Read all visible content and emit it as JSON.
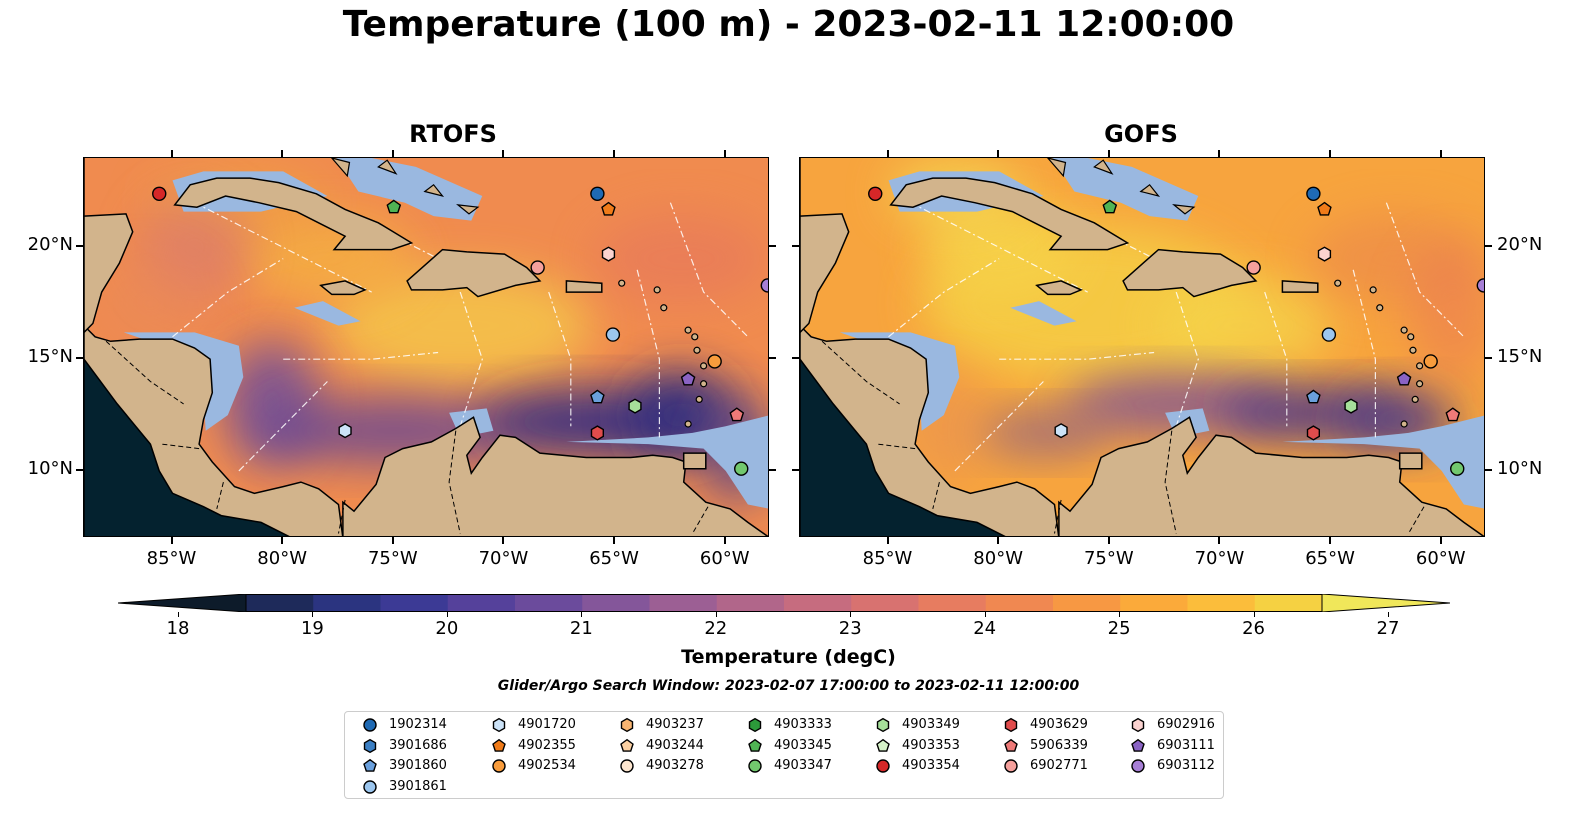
{
  "title": "Temperature (100 m) - 2023-02-11 12:00:00",
  "panels": [
    {
      "title": "RTOFS"
    },
    {
      "title": "GOFS"
    }
  ],
  "x_tick_labels": [
    "85°W",
    "80°W",
    "75°W",
    "70°W",
    "65°W",
    "60°W"
  ],
  "y_tick_labels": [
    "20°N",
    "15°N",
    "10°N"
  ],
  "colorbar": {
    "label": "Temperature (degC)",
    "ticks": [
      "18",
      "19",
      "20",
      "21",
      "22",
      "23",
      "24",
      "25",
      "26",
      "27"
    ],
    "colors": [
      "#0d1b2a",
      "#1e2a5a",
      "#2b3480",
      "#3c3a95",
      "#55419b",
      "#6b4b9c",
      "#84569a",
      "#9c5f94",
      "#b1668a",
      "#c66c7f",
      "#d87270",
      "#e77c60",
      "#f08851",
      "#f79843",
      "#fbaa3a",
      "#fbbd3b",
      "#f5d142",
      "#f0e75a"
    ],
    "vmin": 17.5,
    "vmax": 27
  },
  "search_window": "Glider/Argo Search Window: 2023-02-07 17:00:00 to 2023-02-11 12:00:00",
  "map": {
    "land_color": "#d2b48c",
    "ocean_shallow_color": "#9ab8e0",
    "pacific_color": "#04222f",
    "extent": {
      "lon": [
        -89,
        -58
      ],
      "lat": [
        7,
        24
      ]
    }
  },
  "legend": {
    "items": [
      {
        "id": "1902314",
        "marker": "circle",
        "color": "#1f6ab4"
      },
      {
        "id": "3901686",
        "marker": "hexagon",
        "color": "#3b7fc4"
      },
      {
        "id": "3901860",
        "marker": "pentagon",
        "color": "#6aa0dd"
      },
      {
        "id": "3901861",
        "marker": "circle",
        "color": "#9cc6ee"
      },
      {
        "id": "4901720",
        "marker": "hexagon",
        "color": "#cce3f8"
      },
      {
        "id": "4902355",
        "marker": "pentagon",
        "color": "#f07b19"
      },
      {
        "id": "4902534",
        "marker": "circle",
        "color": "#f89c3c"
      },
      {
        "id": "4903237",
        "marker": "hexagon",
        "color": "#f8b572"
      },
      {
        "id": "4903244",
        "marker": "pentagon",
        "color": "#fbd0a3"
      },
      {
        "id": "4903278",
        "marker": "circle",
        "color": "#fde6cf"
      },
      {
        "id": "4903333",
        "marker": "hexagon",
        "color": "#2c9a3a"
      },
      {
        "id": "4903345",
        "marker": "pentagon",
        "color": "#50b454"
      },
      {
        "id": "4903347",
        "marker": "circle",
        "color": "#72c86e"
      },
      {
        "id": "4903349",
        "marker": "hexagon",
        "color": "#a6e09a"
      },
      {
        "id": "4903353",
        "marker": "pentagon",
        "color": "#d6f2c8"
      },
      {
        "id": "4903354",
        "marker": "circle",
        "color": "#d62728"
      },
      {
        "id": "4903629",
        "marker": "hexagon",
        "color": "#e04c4c"
      },
      {
        "id": "5906339",
        "marker": "pentagon",
        "color": "#ee7a78"
      },
      {
        "id": "6902771",
        "marker": "circle",
        "color": "#f5a09c"
      },
      {
        "id": "6902916",
        "marker": "hexagon",
        "color": "#fbd3d0"
      },
      {
        "id": "6903111",
        "marker": "pentagon",
        "color": "#8a63c4"
      },
      {
        "id": "6903112",
        "marker": "circle",
        "color": "#a77fd6"
      }
    ]
  },
  "observations": [
    {
      "id": "1902314",
      "lon": -65.8,
      "lat": 22.4
    },
    {
      "id": "3901860",
      "lon": -65.8,
      "lat": 13.3
    },
    {
      "id": "3901861",
      "lon": -65.1,
      "lat": 16.1
    },
    {
      "id": "4901720",
      "lon": -77.2,
      "lat": 11.8
    },
    {
      "id": "4902355",
      "lon": -65.3,
      "lat": 21.7
    },
    {
      "id": "4902534",
      "lon": -60.5,
      "lat": 14.9
    },
    {
      "id": "4903345",
      "lon": -75.0,
      "lat": 21.8
    },
    {
      "id": "4903347",
      "lon": -59.3,
      "lat": 10.1
    },
    {
      "id": "4903349",
      "lon": -64.1,
      "lat": 12.9
    },
    {
      "id": "4903354",
      "lon": -85.6,
      "lat": 22.4
    },
    {
      "id": "4903629",
      "lon": -65.8,
      "lat": 11.7
    },
    {
      "id": "5906339",
      "lon": -59.5,
      "lat": 12.5
    },
    {
      "id": "6902771",
      "lon": -68.5,
      "lat": 19.1
    },
    {
      "id": "6902916",
      "lon": -65.3,
      "lat": 19.7
    },
    {
      "id": "6903111",
      "lon": -61.7,
      "lat": 14.1
    },
    {
      "id": "6903112",
      "lon": -58.1,
      "lat": 18.3
    }
  ]
}
